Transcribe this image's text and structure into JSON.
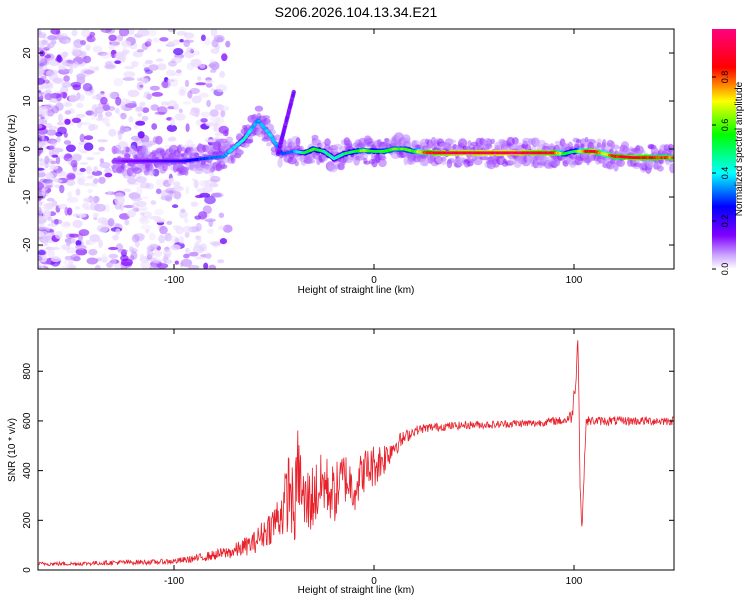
{
  "title": "S206.2026.104.13.34.E21",
  "chart_data": [
    {
      "type": "heatmap",
      "title": "S206.2026.104.13.34.E21",
      "xlabel": "Height of straight line (km)",
      "ylabel": "Frequency (Hz)",
      "xlim": [
        -168,
        150
      ],
      "ylim": [
        -25,
        25
      ],
      "xticks": [
        -100,
        0,
        100
      ],
      "xtick_labels": [
        "-100",
        "0",
        "100"
      ],
      "yticks": [
        -20,
        -10,
        0,
        10,
        20
      ],
      "ytick_labels": [
        "-20",
        "-10",
        "0",
        "10",
        "20"
      ],
      "colorbar": {
        "label": "Normalized spectral amplitude",
        "range": [
          0,
          1
        ],
        "ticks": [
          0.0,
          0.2,
          0.4,
          0.6,
          0.8
        ],
        "tick_labels": [
          "0.0",
          "0.2",
          "0.4",
          "0.6",
          "0.8"
        ],
        "colors": [
          "#ffffff",
          "#8000ff",
          "#0000ff",
          "#00ffff",
          "#00ff00",
          "#ffff00",
          "#ff0000",
          "#ff0080"
        ]
      },
      "ridge": {
        "x": [
          -130,
          -110,
          -95,
          -85,
          -75,
          -65,
          -58,
          -52,
          -46,
          -40,
          -35,
          -30,
          -25,
          -20,
          -15,
          -10,
          -5,
          0,
          5,
          10,
          15,
          20,
          25,
          30,
          40,
          50,
          60,
          70,
          80,
          90,
          95,
          100,
          105,
          110,
          115,
          120,
          130,
          140,
          150
        ],
        "frequency": [
          -2.5,
          -2.5,
          -2.5,
          -2,
          -1.5,
          2,
          6,
          3,
          -1,
          -0.5,
          -0.8,
          0,
          -0.5,
          -2,
          -1,
          -0.5,
          -0.3,
          -0.5,
          -0.5,
          0,
          0,
          -0.5,
          -0.7,
          -0.8,
          -0.8,
          -0.8,
          -0.8,
          -0.8,
          -0.8,
          -0.8,
          -1,
          -0.5,
          -0.5,
          -0.5,
          -1,
          -1.5,
          -1.8,
          -1.8,
          -1.8
        ],
        "amplitude": [
          0.12,
          0.18,
          0.22,
          0.3,
          0.35,
          0.45,
          0.35,
          0.4,
          0.3,
          0.35,
          0.5,
          0.6,
          0.5,
          0.45,
          0.5,
          0.55,
          0.65,
          0.55,
          0.6,
          0.62,
          0.6,
          0.6,
          0.8,
          0.9,
          0.95,
          0.95,
          0.97,
          0.97,
          0.92,
          0.9,
          0.6,
          0.5,
          0.8,
          0.95,
          0.7,
          0.85,
          0.9,
          0.85,
          0.8
        ]
      }
    },
    {
      "type": "line",
      "xlabel": "Height of straight line (km)",
      "ylabel": "SNR (10 * v/v)",
      "xlim": [
        -168,
        150
      ],
      "ylim": [
        0,
        970
      ],
      "xticks": [
        -100,
        0,
        100
      ],
      "xtick_labels": [
        "-100",
        "0",
        "100"
      ],
      "yticks": [
        0,
        200,
        400,
        600,
        800
      ],
      "ytick_labels": [
        "0",
        "200",
        "400",
        "600",
        "800"
      ],
      "series": [
        {
          "name": "SNR",
          "color": "#e8202a",
          "x": [
            -168,
            -150,
            -130,
            -110,
            -100,
            -90,
            -80,
            -70,
            -60,
            -55,
            -50,
            -45,
            -42,
            -40,
            -38,
            -35,
            -30,
            -25,
            -20,
            -15,
            -10,
            -5,
            0,
            5,
            10,
            15,
            20,
            25,
            30,
            40,
            50,
            60,
            70,
            80,
            90,
            95,
            99,
            101,
            102,
            103,
            104,
            106,
            110,
            120,
            130,
            140,
            150
          ],
          "y": [
            25,
            25,
            30,
            32,
            35,
            45,
            60,
            75,
            110,
            150,
            190,
            250,
            350,
            200,
            420,
            260,
            300,
            350,
            300,
            380,
            330,
            400,
            420,
            450,
            500,
            530,
            560,
            570,
            575,
            580,
            585,
            585,
            590,
            590,
            600,
            600,
            620,
            780,
            960,
            350,
            160,
            600,
            600,
            600,
            600,
            600,
            600
          ],
          "noise": [
            8,
            8,
            10,
            10,
            12,
            15,
            20,
            30,
            45,
            60,
            80,
            120,
            180,
            140,
            170,
            150,
            140,
            130,
            120,
            110,
            100,
            90,
            90,
            70,
            45,
            30,
            20,
            18,
            18,
            16,
            16,
            16,
            16,
            16,
            16,
            18,
            30,
            40,
            20,
            30,
            20,
            20,
            18,
            18,
            18,
            18,
            18
          ]
        }
      ]
    }
  ]
}
